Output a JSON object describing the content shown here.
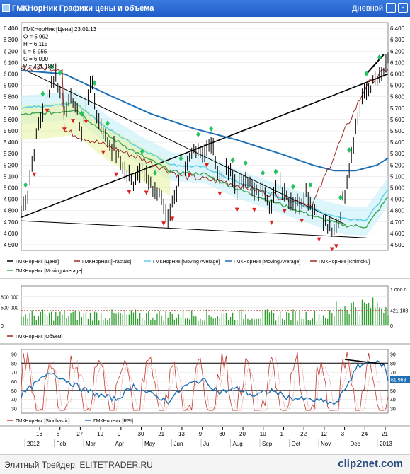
{
  "window": {
    "title": "ГМКНорНик Графики цены и объема",
    "timeframe": "Дневной"
  },
  "colors": {
    "price": "#000000",
    "fractal_up": "#22c55e",
    "fractal_down": "#e11d1d",
    "ma_short": "#5fd0e8",
    "ma_long": "#1f6fb5",
    "ichimoku": "#9b2d1f",
    "ichimoku_green": "#3fa34d",
    "volume": "#2e9e2e",
    "stoch": "#c0392b",
    "rsi": "#1f6fb5"
  },
  "chart_data": [
    {
      "type": "line",
      "name": "price-panel",
      "info": [
        "ГМКНорНик [Цена] 23.01.13",
        "O = 5 992",
        "H = 6 115",
        "L = 5 955",
        "C = 6 090",
        "V = 421 188"
      ],
      "y_ticks": [
        4500,
        4600,
        4700,
        4800,
        4900,
        5000,
        5100,
        5200,
        5300,
        5400,
        5500,
        5600,
        5700,
        5800,
        5900,
        6000,
        6100,
        6200,
        6300,
        6400
      ],
      "ylim": [
        4450,
        6450
      ],
      "legend": [
        "ГМКНорНик [Цена]",
        "ГМКНорНик [Fractals]",
        "ГМКНорНик [Moving Average]",
        "ГМКНорНик [Moving Average]",
        "ГМКНорНик [Ichimoku]",
        "ГМКНорНик [Moving Average]"
      ],
      "close_keypoints": [
        [
          0,
          4780
        ],
        [
          3,
          4960
        ],
        [
          8,
          5550
        ],
        [
          12,
          5820
        ],
        [
          16,
          5990
        ],
        [
          20,
          5700
        ],
        [
          24,
          5780
        ],
        [
          28,
          5500
        ],
        [
          32,
          5950
        ],
        [
          36,
          5580
        ],
        [
          40,
          5420
        ],
        [
          44,
          5300
        ],
        [
          48,
          5150
        ],
        [
          52,
          5050
        ],
        [
          56,
          5200
        ],
        [
          60,
          5000
        ],
        [
          64,
          4950
        ],
        [
          68,
          4750
        ],
        [
          72,
          4980
        ],
        [
          76,
          5150
        ],
        [
          80,
          5350
        ],
        [
          84,
          5300
        ],
        [
          88,
          5380
        ],
        [
          92,
          5100
        ],
        [
          96,
          5150
        ],
        [
          100,
          5000
        ],
        [
          104,
          5100
        ],
        [
          108,
          4950
        ],
        [
          112,
          5000
        ],
        [
          116,
          4850
        ],
        [
          120,
          5050
        ],
        [
          124,
          4900
        ],
        [
          128,
          4850
        ],
        [
          132,
          4950
        ],
        [
          136,
          4800
        ],
        [
          140,
          4700
        ],
        [
          144,
          4600
        ],
        [
          147,
          4700
        ],
        [
          150,
          4980
        ],
        [
          154,
          5420
        ],
        [
          158,
          5780
        ],
        [
          162,
          5900
        ],
        [
          166,
          5950
        ],
        [
          170,
          6090
        ]
      ],
      "ma_long_keypoints": [
        [
          0,
          6030
        ],
        [
          20,
          6000
        ],
        [
          40,
          5820
        ],
        [
          60,
          5650
        ],
        [
          80,
          5520
        ],
        [
          100,
          5420
        ],
        [
          120,
          5300
        ],
        [
          135,
          5200
        ],
        [
          145,
          5150
        ],
        [
          155,
          5150
        ],
        [
          165,
          5200
        ],
        [
          170,
          5260
        ]
      ],
      "ma_short_keypoints": [
        [
          0,
          5700
        ],
        [
          15,
          5720
        ],
        [
          25,
          5750
        ],
        [
          40,
          5520
        ],
        [
          55,
          5350
        ],
        [
          70,
          5200
        ],
        [
          85,
          5180
        ],
        [
          100,
          5050
        ],
        [
          115,
          4950
        ],
        [
          130,
          4850
        ],
        [
          140,
          4780
        ],
        [
          150,
          4730
        ],
        [
          160,
          4720
        ],
        [
          170,
          4980
        ]
      ],
      "ichimoku_keypoints": [
        [
          20,
          5500
        ],
        [
          35,
          5400
        ],
        [
          55,
          5260
        ],
        [
          75,
          5100
        ],
        [
          95,
          5050
        ],
        [
          115,
          4950
        ],
        [
          135,
          4850
        ],
        [
          150,
          5500
        ],
        [
          160,
          5900
        ],
        [
          170,
          6050
        ]
      ],
      "fractals_up_idx": [
        2,
        10,
        14,
        18,
        28,
        34,
        40,
        56,
        62,
        74,
        82,
        88,
        98,
        104,
        112,
        118,
        126,
        134,
        148,
        152,
        160,
        166
      ],
      "fractals_down_idx": [
        6,
        12,
        20,
        24,
        30,
        38,
        44,
        50,
        58,
        66,
        70,
        78,
        86,
        92,
        100,
        108,
        116,
        122,
        130,
        138,
        144,
        146
      ]
    },
    {
      "type": "bar",
      "name": "volume-panel",
      "legend": "ГМКНорНик [Объем]",
      "y_ticks_left": [
        "800 000",
        "500 000",
        "0"
      ],
      "y_ticks_right": [
        "1 000 0",
        "421 188",
        "0"
      ],
      "last_value": 421188,
      "ylim": [
        0,
        1100000
      ]
    },
    {
      "type": "line",
      "name": "oscillator-panel",
      "legend": [
        "ГМКНорНик [Stochastic]",
        "ГМКНорНик [RSI]"
      ],
      "y_ticks": [
        30,
        40,
        50,
        60,
        70,
        80,
        90
      ],
      "ylim": [
        25,
        95
      ],
      "levels": [
        80,
        50
      ],
      "rsi_last": "61.963",
      "rsi_keypoints": [
        [
          0,
          45
        ],
        [
          8,
          60
        ],
        [
          14,
          70
        ],
        [
          20,
          62
        ],
        [
          28,
          52
        ],
        [
          36,
          45
        ],
        [
          44,
          40
        ],
        [
          52,
          55
        ],
        [
          60,
          46
        ],
        [
          68,
          38
        ],
        [
          76,
          55
        ],
        [
          84,
          62
        ],
        [
          92,
          48
        ],
        [
          100,
          52
        ],
        [
          108,
          44
        ],
        [
          116,
          50
        ],
        [
          124,
          42
        ],
        [
          132,
          40
        ],
        [
          140,
          38
        ],
        [
          146,
          35
        ],
        [
          150,
          52
        ],
        [
          156,
          76
        ],
        [
          162,
          82
        ],
        [
          168,
          78
        ],
        [
          170,
          62
        ]
      ]
    },
    {
      "type": "axis",
      "name": "date-axis",
      "day_ticks": [
        "16",
        "6",
        "27",
        "19",
        "9",
        "30",
        "21",
        "13",
        "9",
        "30",
        "20",
        "10",
        "1",
        "22",
        "12",
        "3",
        "24",
        "21"
      ],
      "month_ticks": [
        "2012",
        "Feb",
        "Mar",
        "Apr",
        "May",
        "Jun",
        "Jul",
        "Aug",
        "Sep",
        "Oct",
        "Nov",
        "Dec",
        "2013"
      ]
    }
  ],
  "footer": {
    "text": "Элитный Трейдер, ELITETRADER.RU",
    "logo": "clip2net.com"
  }
}
